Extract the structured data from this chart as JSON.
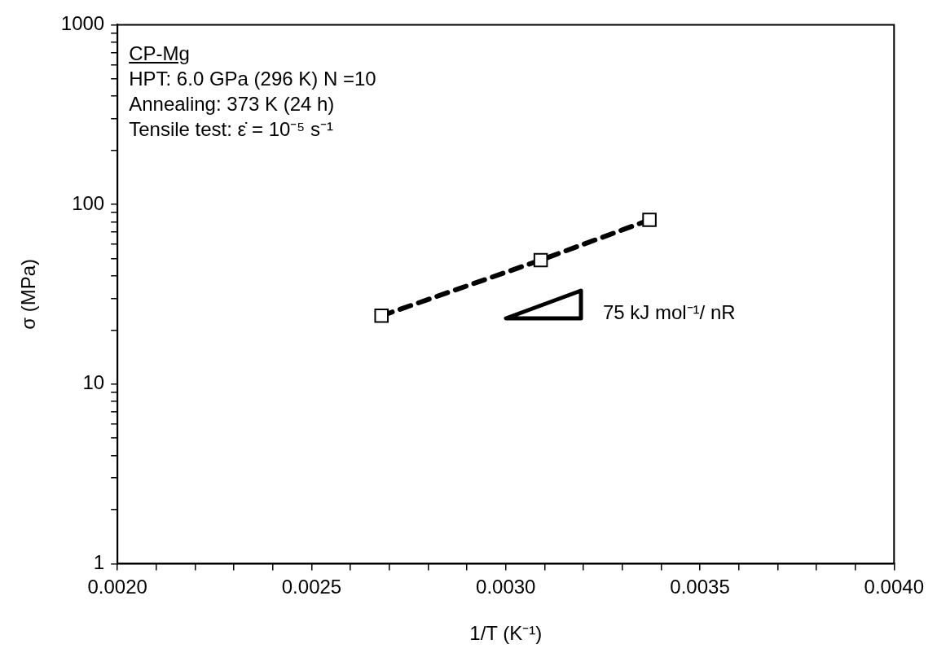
{
  "chart_data": {
    "type": "line",
    "xlabel": "1/T (K⁻¹)",
    "ylabel": "σ (MPa)",
    "x": [
      0.00268,
      0.00309,
      0.00337
    ],
    "series": [
      {
        "color": "#000000",
        "values": [
          24,
          49,
          82
        ]
      }
    ],
    "xlim": [
      0.002,
      0.004
    ],
    "xticks": [
      {
        "value": 0.002,
        "label": "0.0020"
      },
      {
        "value": 0.0021,
        "label": null
      },
      {
        "value": 0.0022,
        "label": null
      },
      {
        "value": 0.0023,
        "label": null
      },
      {
        "value": 0.0024,
        "label": null
      },
      {
        "value": 0.0025,
        "label": "0.0025"
      },
      {
        "value": 0.0026,
        "label": null
      },
      {
        "value": 0.0027,
        "label": null
      },
      {
        "value": 0.0028,
        "label": null
      },
      {
        "value": 0.0029,
        "label": null
      },
      {
        "value": 0.003,
        "label": "0.0030"
      },
      {
        "value": 0.0031,
        "label": null
      },
      {
        "value": 0.0032,
        "label": null
      },
      {
        "value": 0.0033,
        "label": null
      },
      {
        "value": 0.0034,
        "label": null
      },
      {
        "value": 0.0035,
        "label": "0.0035"
      },
      {
        "value": 0.0036,
        "label": null
      },
      {
        "value": 0.0037,
        "label": null
      },
      {
        "value": 0.0038,
        "label": null
      },
      {
        "value": 0.0039,
        "label": null
      },
      {
        "value": 0.004,
        "label": "0.0040"
      }
    ],
    "ylim": [
      1,
      1000
    ],
    "log": true,
    "yticks": [
      1,
      {
        "value": 2,
        "label": null
      },
      {
        "value": 3,
        "label": null
      },
      {
        "value": 4,
        "label": null
      },
      {
        "value": 5,
        "label": null
      },
      {
        "value": 6,
        "label": null
      },
      {
        "value": 7,
        "label": null
      },
      {
        "value": 8,
        "label": null
      },
      {
        "value": 9,
        "label": null
      },
      10,
      {
        "value": 20,
        "label": null
      },
      {
        "value": 30,
        "label": null
      },
      {
        "value": 40,
        "label": null
      },
      {
        "value": 50,
        "label": null
      },
      {
        "value": 60,
        "label": null
      },
      {
        "value": 70,
        "label": null
      },
      {
        "value": 80,
        "label": null
      },
      {
        "value": 90,
        "label": null
      },
      100,
      {
        "value": 200,
        "label": null
      },
      {
        "value": 300,
        "label": null
      },
      {
        "value": 400,
        "label": null
      },
      {
        "value": 500,
        "label": null
      },
      {
        "value": 600,
        "label": null
      },
      {
        "value": 700,
        "label": null
      },
      {
        "value": 800,
        "label": null
      },
      {
        "value": 900,
        "label": null
      },
      1000
    ],
    "grid": false,
    "legend": false,
    "marker": "square",
    "line_style": "dashed",
    "annotations": [
      "CP-Mg",
      "HPT: 6.0 GPa (296 K) N =10",
      "Annealing: 373 K (24 h)",
      "Tensile test: ε̇ = 10⁻⁵ s⁻¹",
      "75 kJ mol⁻¹/ nR"
    ]
  }
}
